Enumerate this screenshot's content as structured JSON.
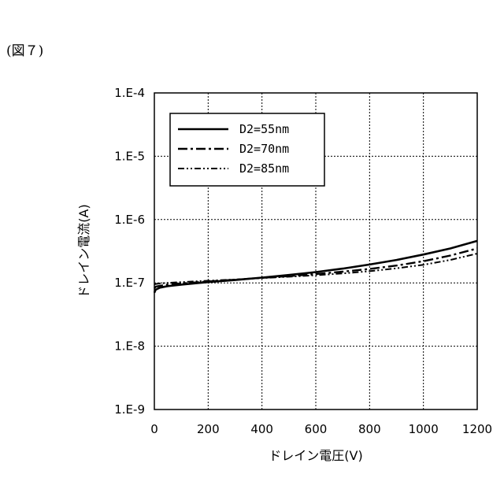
{
  "caption": "(図７)",
  "chart_data": {
    "type": "line",
    "title": "",
    "xlabel": "ドレイン電圧(V)",
    "ylabel": "ドレイン電流(A)",
    "xlim": [
      0,
      1200
    ],
    "ylim": [
      1e-09,
      0.0001
    ],
    "y_scale": "log",
    "grid": true,
    "legend_position": "top-left",
    "x_ticks": [
      0,
      200,
      400,
      600,
      800,
      1000,
      1200
    ],
    "x_tick_labels": [
      "0",
      "200",
      "400",
      "600",
      "800",
      "1000",
      "1200"
    ],
    "y_ticks": [
      0.0001,
      1e-05,
      1e-06,
      1e-07,
      1e-08,
      1e-09
    ],
    "y_tick_labels": [
      "1.E-4",
      "1.E-5",
      "1.E-6",
      "1.E-7",
      "1.E-8",
      "1.E-9"
    ],
    "series": [
      {
        "name": "D2=55nm",
        "style": "solid",
        "x": [
          0,
          5,
          20,
          50,
          100,
          200,
          300,
          400,
          500,
          600,
          700,
          800,
          900,
          1000,
          1100,
          1200
        ],
        "y": [
          7e-08,
          7.8e-08,
          8.4e-08,
          8.9e-08,
          9.4e-08,
          1.03e-07,
          1.11e-07,
          1.21e-07,
          1.33e-07,
          1.48e-07,
          1.68e-07,
          1.95e-07,
          2.3e-07,
          2.8e-07,
          3.5e-07,
          4.6e-07
        ]
      },
      {
        "name": "D2=70nm",
        "style": "dash-dot",
        "x": [
          0,
          5,
          20,
          50,
          100,
          200,
          300,
          400,
          500,
          600,
          700,
          800,
          900,
          1000,
          1100,
          1200
        ],
        "y": [
          8.2e-08,
          8.7e-08,
          9e-08,
          9.4e-08,
          9.8e-08,
          1.05e-07,
          1.12e-07,
          1.2e-07,
          1.28e-07,
          1.38e-07,
          1.5e-07,
          1.66e-07,
          1.88e-07,
          2.2e-07,
          2.7e-07,
          3.5e-07
        ]
      },
      {
        "name": "D2=85nm",
        "style": "dash-dot-dot",
        "x": [
          0,
          5,
          20,
          50,
          100,
          200,
          300,
          400,
          500,
          600,
          700,
          800,
          900,
          1000,
          1100,
          1200
        ],
        "y": [
          9.4e-08,
          9.6e-08,
          9.8e-08,
          1e-07,
          1.03e-07,
          1.08e-07,
          1.13e-07,
          1.19e-07,
          1.25e-07,
          1.32e-07,
          1.41e-07,
          1.53e-07,
          1.7e-07,
          1.93e-07,
          2.3e-07,
          2.9e-07
        ]
      }
    ]
  }
}
